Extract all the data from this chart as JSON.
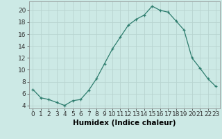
{
  "x": [
    0,
    1,
    2,
    3,
    4,
    5,
    6,
    7,
    8,
    9,
    10,
    11,
    12,
    13,
    14,
    15,
    16,
    17,
    18,
    19,
    20,
    21,
    22,
    23
  ],
  "y": [
    6.7,
    5.3,
    5.0,
    4.5,
    4.0,
    4.8,
    5.0,
    6.5,
    8.5,
    11.0,
    13.5,
    15.5,
    17.5,
    18.5,
    19.2,
    20.7,
    20.0,
    19.7,
    18.2,
    16.7,
    12.0,
    10.3,
    8.5,
    7.2
  ],
  "line_color": "#2e7d6e",
  "marker": "+",
  "xlabel": "Humidex (Indice chaleur)",
  "ylim": [
    3.5,
    21.5
  ],
  "xlim": [
    -0.5,
    23.5
  ],
  "yticks": [
    4,
    6,
    8,
    10,
    12,
    14,
    16,
    18,
    20
  ],
  "xticks": [
    0,
    1,
    2,
    3,
    4,
    5,
    6,
    7,
    8,
    9,
    10,
    11,
    12,
    13,
    14,
    15,
    16,
    17,
    18,
    19,
    20,
    21,
    22,
    23
  ],
  "bg_color": "#cce9e5",
  "grid_color": "#b8d4d0",
  "font_size": 6.5
}
